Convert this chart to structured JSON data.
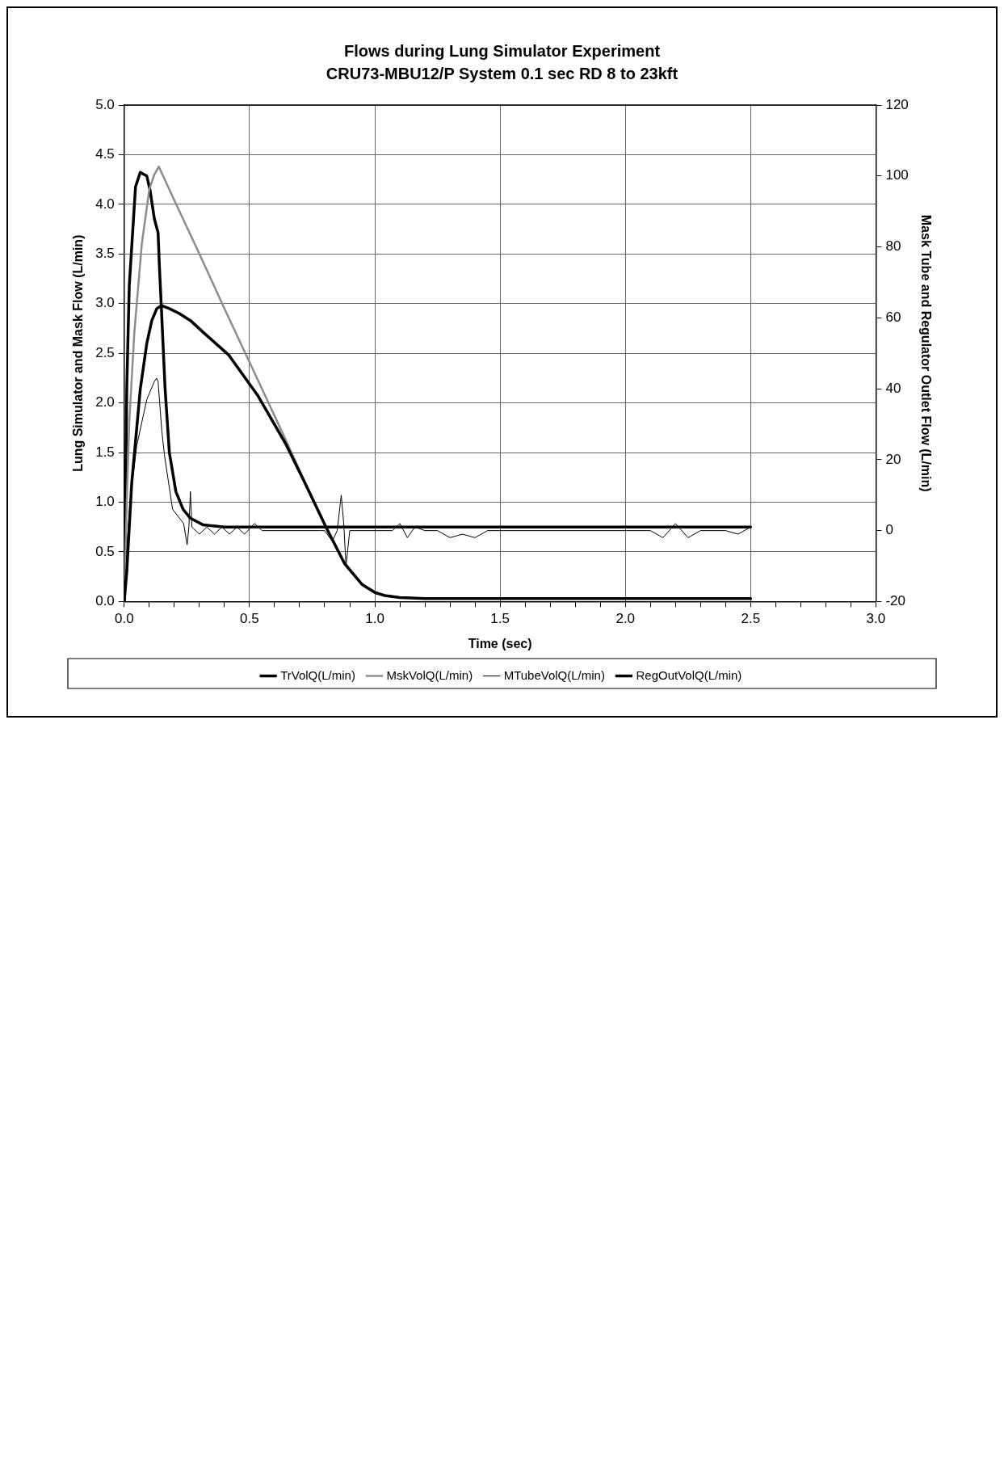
{
  "chart_data": {
    "type": "line",
    "title": "Flows during Lung Simulator Experiment",
    "subtitle": "CRU73-MBU12/P System 0.1 sec RD 8 to 23kft",
    "xlabel": "Time (sec)",
    "ylabel": "Lung Simulator and Mask Flow (L/min)",
    "y2label": "Mask Tube and Regulator Outlet Flow (L/min)",
    "xlim": [
      0,
      3
    ],
    "xticks": [
      {
        "value": 0,
        "label": "0.0"
      },
      {
        "value": 0.1,
        "label": null
      },
      {
        "value": 0.2,
        "label": null
      },
      {
        "value": 0.3,
        "label": null
      },
      {
        "value": 0.4,
        "label": null
      },
      0.5,
      {
        "value": 0.6,
        "label": null
      },
      {
        "value": 0.7,
        "label": null
      },
      {
        "value": 0.8,
        "label": null
      },
      {
        "value": 0.9,
        "label": null
      },
      {
        "value": 1,
        "label": "1.0"
      },
      {
        "value": 1.1,
        "label": null
      },
      {
        "value": 1.2,
        "label": null
      },
      {
        "value": 1.3,
        "label": null
      },
      {
        "value": 1.4,
        "label": null
      },
      1.5,
      {
        "value": 1.6,
        "label": null
      },
      {
        "value": 1.7,
        "label": null
      },
      {
        "value": 1.8,
        "label": null
      },
      {
        "value": 1.9,
        "label": null
      },
      {
        "value": 2,
        "label": "2.0"
      },
      {
        "value": 2.1,
        "label": null
      },
      {
        "value": 2.2,
        "label": null
      },
      {
        "value": 2.3,
        "label": null
      },
      {
        "value": 2.4,
        "label": null
      },
      2.5,
      {
        "value": 2.6,
        "label": null
      },
      {
        "value": 2.7,
        "label": null
      },
      {
        "value": 2.8,
        "label": null
      },
      {
        "value": 2.9,
        "label": null
      },
      {
        "value": 3,
        "label": "3.0"
      }
    ],
    "ylim": [
      0,
      5
    ],
    "yticks": [
      {
        "value": 0,
        "label": "0.0"
      },
      0.5,
      {
        "value": 1,
        "label": "1.0"
      },
      1.5,
      {
        "value": 2,
        "label": "2.0"
      },
      2.5,
      {
        "value": 3,
        "label": "3.0"
      },
      3.5,
      {
        "value": 4,
        "label": "4.0"
      },
      4.5,
      {
        "value": 5,
        "label": "5.0"
      }
    ],
    "y2lim": [
      -20,
      120
    ],
    "y2ticks": [
      -20,
      0,
      20,
      40,
      60,
      80,
      100,
      120
    ],
    "grid": true,
    "legend": "bottom",
    "series": [
      {
        "name": "TrVolQ(L/min)",
        "color": "#000000",
        "x": [
          0,
          0.01,
          0.03,
          0.064,
          0.09,
          0.11,
          0.13,
          0.148,
          0.18,
          0.22,
          0.264,
          0.32,
          0.418,
          0.534,
          0.644,
          0.72,
          0.807,
          0.88,
          0.95,
          1.0,
          1.04,
          1.1,
          1.2,
          1.5,
          2.0,
          2.5
        ],
        "values": [
          0,
          0.3,
          1.2,
          2.14,
          2.6,
          2.83,
          2.95,
          2.98,
          2.95,
          2.9,
          2.83,
          2.7,
          2.48,
          2.07,
          1.59,
          1.2,
          0.74,
          0.38,
          0.17,
          0.09,
          0.06,
          0.04,
          0.03,
          0.03,
          0.03,
          0.03
        ]
      },
      {
        "name": "MskVolQ(L/min)",
        "color": "#8c8c8c",
        "x": [
          0,
          0.01,
          0.02,
          0.04,
          0.07,
          0.1,
          0.12,
          0.138,
          0.2,
          0.3,
          0.4,
          0.5,
          0.6,
          0.644,
          0.72,
          0.807,
          0.88,
          0.95,
          1.0,
          1.04,
          1.1,
          1.2,
          1.5,
          2.0,
          2.5
        ],
        "values": [
          0,
          1.0,
          1.8,
          2.7,
          3.6,
          4.15,
          4.3,
          4.38,
          4.04,
          3.5,
          2.95,
          2.41,
          1.87,
          1.63,
          1.21,
          0.74,
          0.37,
          0.17,
          0.1,
          0.06,
          0.04,
          0.03,
          0.03,
          0.03,
          0.03
        ]
      },
      {
        "name": "MTubeVolQ(L/min)",
        "color": "#000000",
        "axis": "y2",
        "x": [
          0,
          0.01,
          0.023,
          0.05,
          0.09,
          0.12,
          0.129,
          0.135,
          0.15,
          0.161,
          0.193,
          0.237,
          0.251,
          0.258,
          0.264,
          0.27,
          0.3,
          0.33,
          0.36,
          0.39,
          0.42,
          0.45,
          0.48,
          0.52,
          0.55,
          0.6,
          0.78,
          0.8,
          0.83,
          0.85,
          0.866,
          0.876,
          0.885,
          0.9,
          1.07,
          1.1,
          1.13,
          1.16,
          1.2,
          1.25,
          1.3,
          1.35,
          1.4,
          1.45,
          1.5,
          2.1,
          2.15,
          2.2,
          2.25,
          2.3,
          2.4,
          2.45,
          2.5
        ],
        "values": [
          -20,
          -5,
          8,
          24,
          37,
          42,
          43,
          42,
          28,
          21,
          6,
          2,
          -4,
          1,
          11,
          1,
          -1,
          1,
          -1,
          1,
          -1,
          1,
          -1,
          2,
          0,
          0,
          0,
          0,
          -3,
          0,
          10,
          2,
          -10,
          0,
          0,
          2,
          -2,
          1,
          0,
          0,
          -2,
          -1,
          -2,
          0,
          0,
          0,
          -2,
          2,
          -2,
          0,
          0,
          -1,
          1
        ]
      },
      {
        "name": "RegOutVolQ(L/min)",
        "color": "#000000",
        "axis": "y2",
        "x": [
          0,
          0.01,
          0.02,
          0.045,
          0.064,
          0.09,
          0.103,
          0.12,
          0.135,
          0.14,
          0.148,
          0.163,
          0.18,
          0.206,
          0.235,
          0.264,
          0.315,
          0.4,
          1.0,
          2.0,
          2.5
        ],
        "values": [
          -20,
          40,
          69,
          97,
          101,
          100,
          96,
          88,
          84,
          75,
          63,
          40,
          22,
          11,
          6,
          3.5,
          1.6,
          1,
          1,
          1,
          1
        ]
      }
    ]
  }
}
